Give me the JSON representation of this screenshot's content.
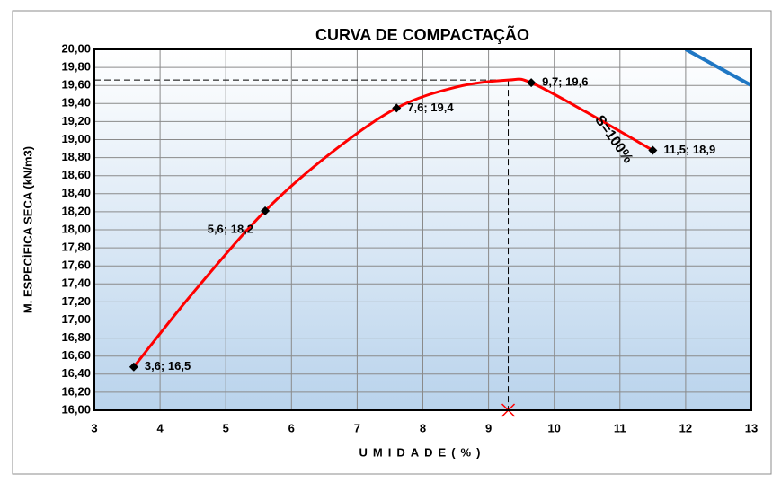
{
  "chart_data": {
    "type": "scatter",
    "title": "CURVA DE COMPACTAÇÃO",
    "xlabel": "UMIDADE(%)",
    "ylabel": "M. ESPECÍFICA SECA (kN/m3)",
    "xlim": [
      3,
      13
    ],
    "xticks": [
      3,
      4,
      5,
      6,
      7,
      8,
      9,
      10,
      11,
      12,
      13
    ],
    "ylim": [
      16,
      20
    ],
    "yticks": [
      {
        "value": 16,
        "label": "16,00"
      },
      {
        "value": 16.2,
        "label": "16,20"
      },
      {
        "value": 16.4,
        "label": "16,40"
      },
      {
        "value": 16.6,
        "label": "16,60"
      },
      {
        "value": 16.8,
        "label": "16,80"
      },
      {
        "value": 17,
        "label": "17,00"
      },
      {
        "value": 17.2,
        "label": "17,20"
      },
      {
        "value": 17.4,
        "label": "17,40"
      },
      {
        "value": 17.6,
        "label": "17,60"
      },
      {
        "value": 17.8,
        "label": "17,80"
      },
      {
        "value": 18,
        "label": "18,00"
      },
      {
        "value": 18.2,
        "label": "18,20"
      },
      {
        "value": 18.4,
        "label": "18,40"
      },
      {
        "value": 18.6,
        "label": "18,60"
      },
      {
        "value": 18.8,
        "label": "18,80"
      },
      {
        "value": 19,
        "label": "19,00"
      },
      {
        "value": 19.2,
        "label": "19,20"
      },
      {
        "value": 19.4,
        "label": "19,40"
      },
      {
        "value": 19.6,
        "label": "19,60"
      },
      {
        "value": 19.8,
        "label": "19,80"
      },
      {
        "value": 20,
        "label": "20,00"
      }
    ],
    "grid": true,
    "series": [
      {
        "color": "#ff0000",
        "line": true,
        "x": [
          3.6,
          4.5,
          5.6,
          6.6,
          7.6,
          8.5,
          9.3,
          9.65,
          10.5,
          11.5
        ],
        "values": [
          16.48,
          17.3,
          18.21,
          18.85,
          19.35,
          19.58,
          19.66,
          19.63,
          19.3,
          18.88
        ]
      },
      {
        "color": "#000000",
        "line": false,
        "x": [
          3.6,
          5.6,
          7.6,
          9.65,
          11.5
        ],
        "values": [
          16.48,
          18.21,
          19.35,
          19.63,
          18.88
        ],
        "value_labels": [
          "3,6; 16,5",
          "5,6; 18,2",
          "7,6; 19,4",
          "9,7; 19,6",
          "11,5; 18,9"
        ]
      },
      {
        "color": "#1f77c4",
        "line": true,
        "x": [
          12,
          13
        ],
        "values": [
          20,
          19.6
        ]
      }
    ],
    "annotations": [
      {
        "text": "S=100%",
        "x": 10.9,
        "y": 19.0
      }
    ],
    "optimum": {
      "x": 9.3,
      "y": 19.66
    }
  }
}
